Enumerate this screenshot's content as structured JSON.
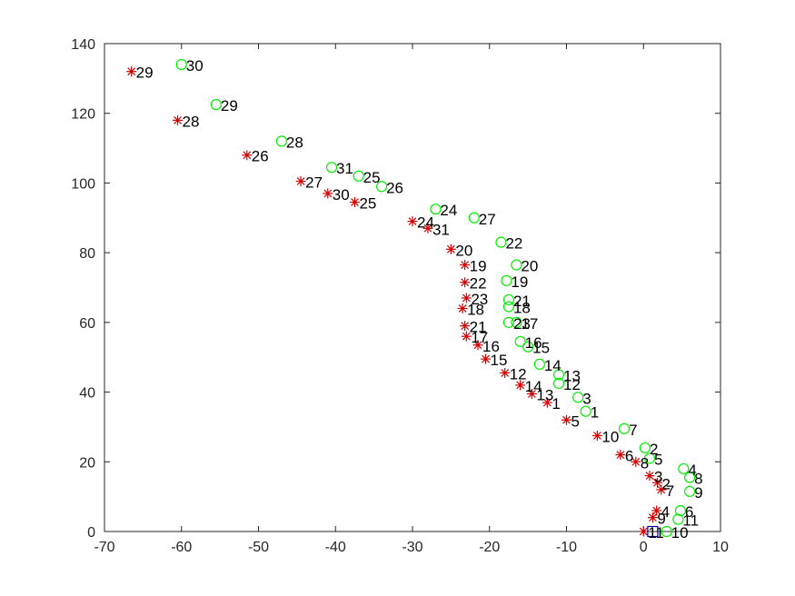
{
  "chart_data": {
    "type": "scatter",
    "title": "",
    "xlabel": "",
    "ylabel": "",
    "xlim": [
      -70,
      10
    ],
    "ylim": [
      0,
      140
    ],
    "xticks": [
      -70,
      -60,
      -50,
      -40,
      -30,
      -20,
      -10,
      0,
      10
    ],
    "yticks": [
      0,
      20,
      40,
      60,
      80,
      100,
      120,
      140
    ],
    "grid": false,
    "box": true,
    "series": [
      {
        "marker": "asterisk",
        "color": "#d40000",
        "points": [
          {
            "x": 0,
            "y": 0,
            "label": "11"
          },
          {
            "x": 1.2,
            "y": 4,
            "label": "9"
          },
          {
            "x": 1.7,
            "y": 6,
            "label": "4"
          },
          {
            "x": 2.3,
            "y": 12,
            "label": "7"
          },
          {
            "x": 1.8,
            "y": 14,
            "label": "2"
          },
          {
            "x": 0.8,
            "y": 16,
            "label": "3"
          },
          {
            "x": -1,
            "y": 20,
            "label": "8"
          },
          {
            "x": -3,
            "y": 22,
            "label": "6"
          },
          {
            "x": -6,
            "y": 27.5,
            "label": "10"
          },
          {
            "x": -10,
            "y": 32,
            "label": "5"
          },
          {
            "x": -12.5,
            "y": 37,
            "label": "1"
          },
          {
            "x": -14.5,
            "y": 39.5,
            "label": "13"
          },
          {
            "x": -16,
            "y": 42,
            "label": "14"
          },
          {
            "x": -18,
            "y": 45.5,
            "label": "12"
          },
          {
            "x": -20.5,
            "y": 49.5,
            "label": "15"
          },
          {
            "x": -21.5,
            "y": 53.5,
            "label": "16"
          },
          {
            "x": -23,
            "y": 56,
            "label": "17"
          },
          {
            "x": -23.2,
            "y": 59,
            "label": "21"
          },
          {
            "x": -23.5,
            "y": 64,
            "label": "18"
          },
          {
            "x": -23,
            "y": 67,
            "label": "23"
          },
          {
            "x": -23.2,
            "y": 71.5,
            "label": "22"
          },
          {
            "x": -23.2,
            "y": 76.5,
            "label": "19"
          },
          {
            "x": -25,
            "y": 81,
            "label": "20"
          },
          {
            "x": -28,
            "y": 87,
            "label": "31"
          },
          {
            "x": -30,
            "y": 89,
            "label": "24"
          },
          {
            "x": -37.5,
            "y": 94.5,
            "label": "25"
          },
          {
            "x": -41,
            "y": 97,
            "label": "30"
          },
          {
            "x": -44.5,
            "y": 100.5,
            "label": "27"
          },
          {
            "x": -51.5,
            "y": 108,
            "label": "26"
          },
          {
            "x": -60.5,
            "y": 118,
            "label": "28"
          },
          {
            "x": -66.5,
            "y": 132,
            "label": "29"
          }
        ]
      },
      {
        "marker": "circle",
        "color": "#00ee00",
        "points": [
          {
            "x": 3,
            "y": 0,
            "label": "10"
          },
          {
            "x": 4.5,
            "y": 3.5,
            "label": "11"
          },
          {
            "x": 4.8,
            "y": 6,
            "label": "6"
          },
          {
            "x": 6,
            "y": 11.5,
            "label": "9"
          },
          {
            "x": 6,
            "y": 15.5,
            "label": "8"
          },
          {
            "x": 5.2,
            "y": 18,
            "label": "4"
          },
          {
            "x": 0.8,
            "y": 21,
            "label": "5"
          },
          {
            "x": 0.2,
            "y": 24,
            "label": "2"
          },
          {
            "x": -2.5,
            "y": 29.5,
            "label": "7"
          },
          {
            "x": -7.5,
            "y": 34.5,
            "label": "1"
          },
          {
            "x": -8.5,
            "y": 38.5,
            "label": "3"
          },
          {
            "x": -11,
            "y": 42.5,
            "label": "12"
          },
          {
            "x": -11,
            "y": 45,
            "label": "13"
          },
          {
            "x": -13.5,
            "y": 48,
            "label": "14"
          },
          {
            "x": -15,
            "y": 53,
            "label": "15"
          },
          {
            "x": -16,
            "y": 54.5,
            "label": "16"
          },
          {
            "x": -17.5,
            "y": 60,
            "label": "23"
          },
          {
            "x": -16.5,
            "y": 60,
            "label": "17"
          },
          {
            "x": -17.5,
            "y": 64.5,
            "label": "18"
          },
          {
            "x": -17.5,
            "y": 66.5,
            "label": "21"
          },
          {
            "x": -17.8,
            "y": 72,
            "label": "19"
          },
          {
            "x": -16.5,
            "y": 76.5,
            "label": "20"
          },
          {
            "x": -18.5,
            "y": 83,
            "label": "22"
          },
          {
            "x": -22,
            "y": 90,
            "label": "27"
          },
          {
            "x": -27,
            "y": 92.5,
            "label": "24"
          },
          {
            "x": -34,
            "y": 99,
            "label": "26"
          },
          {
            "x": -37,
            "y": 102,
            "label": "25"
          },
          {
            "x": -40.5,
            "y": 104.5,
            "label": "31"
          },
          {
            "x": -47,
            "y": 112,
            "label": "28"
          },
          {
            "x": -55.5,
            "y": 122.5,
            "label": "29"
          },
          {
            "x": -60,
            "y": 134,
            "label": "30"
          }
        ]
      },
      {
        "marker": "square",
        "color": "#00008b",
        "points": [
          {
            "x": 1.2,
            "y": 0,
            "label": ""
          }
        ]
      }
    ]
  }
}
